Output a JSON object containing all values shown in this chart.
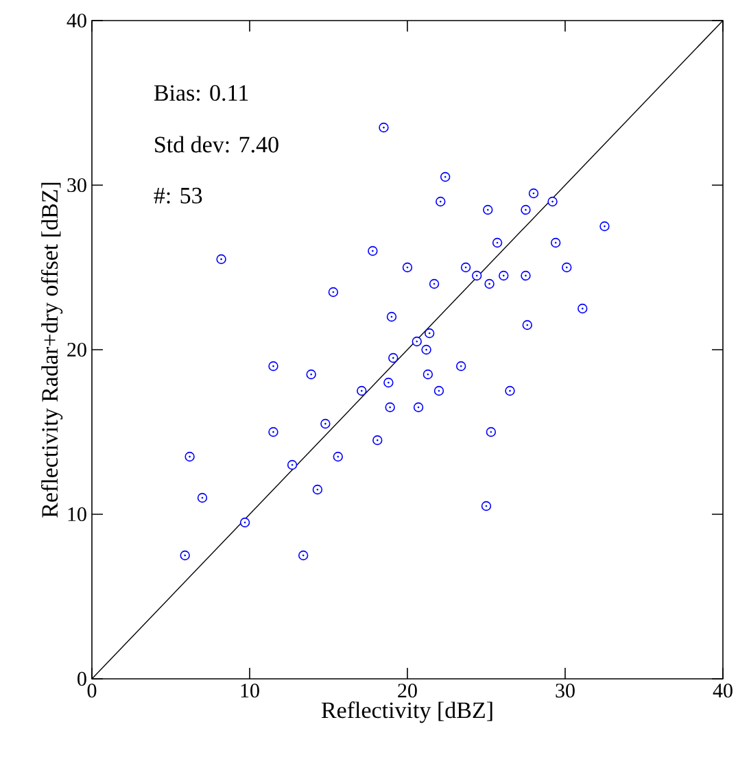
{
  "chart_data": {
    "type": "scatter",
    "xlabel": "Reflectivity [dBZ]",
    "ylabel": "Reflectivity Radar+dry offset [dBZ]",
    "xlim": [
      0,
      40
    ],
    "ylim": [
      0,
      40
    ],
    "xticks": [
      0,
      10,
      20,
      30,
      40
    ],
    "yticks": [
      0,
      10,
      20,
      30,
      40
    ],
    "grid": false,
    "annotations": [
      "Bias: 0.11",
      "Std dev: 7.40",
      "#: 53"
    ],
    "series": [
      {
        "color": "#0000ff",
        "marker": "circle",
        "x": [
          18.5,
          22.4,
          22.1,
          28.0,
          25.1,
          27.5,
          29.2,
          32.5,
          25.7,
          29.4,
          8.2,
          17.8,
          20.0,
          23.7,
          30.1,
          24.4,
          26.1,
          27.5,
          25.2,
          21.7,
          15.3,
          19.0,
          31.1,
          27.6,
          20.6,
          21.4,
          21.2,
          19.1,
          11.5,
          13.9,
          23.4,
          21.3,
          18.8,
          22.0,
          17.1,
          26.5,
          18.9,
          20.7,
          14.8,
          11.5,
          25.3,
          18.1,
          15.6,
          6.2,
          12.7,
          14.3,
          7.0,
          25.0,
          9.7,
          5.9,
          13.4
        ],
        "values": [
          33.5,
          30.5,
          29.0,
          29.5,
          28.5,
          28.5,
          29.0,
          27.5,
          26.5,
          26.5,
          25.5,
          26.0,
          25.0,
          25.0,
          25.0,
          24.5,
          24.5,
          24.5,
          24.0,
          24.0,
          23.5,
          22.0,
          22.5,
          21.5,
          20.5,
          21.0,
          20.0,
          19.5,
          19.0,
          18.5,
          19.0,
          18.5,
          18.0,
          17.5,
          17.5,
          17.5,
          16.5,
          16.5,
          15.5,
          15.0,
          15.0,
          14.5,
          13.5,
          13.5,
          13.0,
          11.5,
          11.0,
          10.5,
          9.5,
          7.5,
          7.5
        ]
      },
      {
        "type": "line",
        "color": "#000000",
        "marker": "none",
        "x": [
          0,
          40
        ],
        "values": [
          0,
          40
        ]
      }
    ]
  }
}
